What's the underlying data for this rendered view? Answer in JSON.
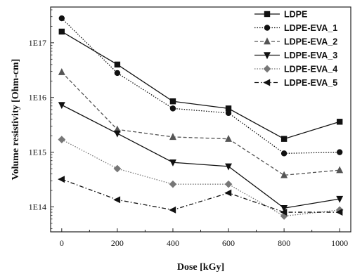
{
  "chart_data": {
    "type": "line",
    "title": "",
    "xlabel": "Dose [kGy]",
    "ylabel": "Volume resistivity [Ohm-cm]",
    "x": [
      0,
      200,
      400,
      600,
      800,
      1000
    ],
    "xlim": [
      -40,
      1040
    ],
    "xticks": [
      0,
      200,
      400,
      600,
      800,
      1000
    ],
    "yscale": "log",
    "ylim": [
      35000000000000.0,
      4.5e+17
    ],
    "yticks": [
      {
        "value": 100000000000000.0,
        "label": "1E14"
      },
      {
        "value": 1000000000000000.0,
        "label": "1E15"
      },
      {
        "value": 1e+16,
        "label": "1E16"
      },
      {
        "value": 1e+17,
        "label": "1E17"
      }
    ],
    "grid": false,
    "legend_position": "top-right",
    "series": [
      {
        "name": "LDPE",
        "marker": "square",
        "dash": "solid",
        "color": "#111111",
        "values": [
          1.6e+17,
          4e+16,
          8500000000000000.0,
          6300000000000000.0,
          1750000000000000.0,
          3600000000000000.0
        ]
      },
      {
        "name": "LDPE-EVA_1",
        "marker": "circle",
        "dash": "dotted",
        "color": "#111111",
        "values": [
          2.8e+17,
          2.8e+16,
          6300000000000000.0,
          5200000000000000.0,
          950000000000000.0,
          1000000000000000.0
        ]
      },
      {
        "name": "LDPE-EVA_2",
        "marker": "triangle-up",
        "dash": "dashed",
        "color": "#555555",
        "values": [
          2.9e+16,
          2600000000000000.0,
          1900000000000000.0,
          1750000000000000.0,
          380000000000000.0,
          470000000000000.0
        ]
      },
      {
        "name": "LDPE-EVA_3",
        "marker": "triangle-down",
        "dash": "solid",
        "color": "#111111",
        "values": [
          7300000000000000.0,
          2200000000000000.0,
          650000000000000.0,
          550000000000000.0,
          95000000000000.0,
          140000000000000.0
        ]
      },
      {
        "name": "LDPE-EVA_4",
        "marker": "diamond",
        "dash": "dotted",
        "color": "#777777",
        "values": [
          1700000000000000.0,
          500000000000000.0,
          260000000000000.0,
          260000000000000.0,
          68000000000000.0,
          88000000000000.0
        ]
      },
      {
        "name": "LDPE-EVA_5",
        "marker": "triangle-left",
        "dash": "dashdot",
        "color": "#111111",
        "values": [
          320000000000000.0,
          135000000000000.0,
          88000000000000.0,
          180000000000000.0,
          80000000000000.0,
          80000000000000.0
        ]
      }
    ]
  }
}
